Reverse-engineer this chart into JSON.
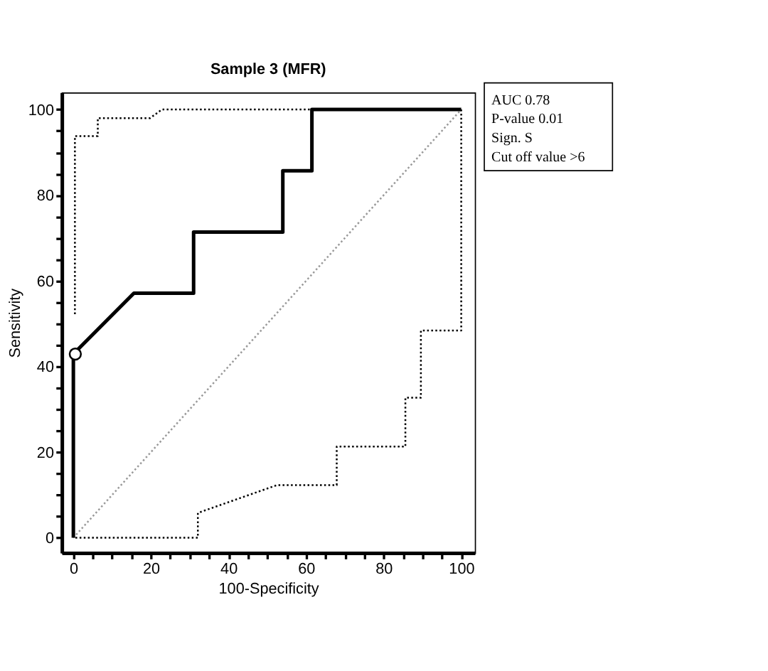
{
  "chart_data": {
    "type": "line",
    "title": "Sample 3 (MFR)",
    "xlabel": "100-Specificity",
    "ylabel": "Sensitivity",
    "xlim": [
      -3,
      103.5
    ],
    "ylim": [
      -3.5,
      104
    ],
    "xticks": [
      0,
      {
        "value": 5,
        "label": null
      },
      {
        "value": 10,
        "label": null
      },
      {
        "value": 15,
        "label": null
      },
      20,
      {
        "value": 25,
        "label": null
      },
      {
        "value": 30,
        "label": null
      },
      {
        "value": 35,
        "label": null
      },
      40,
      {
        "value": 45,
        "label": null
      },
      {
        "value": 50,
        "label": null
      },
      {
        "value": 55,
        "label": null
      },
      60,
      {
        "value": 65,
        "label": null
      },
      {
        "value": 70,
        "label": null
      },
      {
        "value": 75,
        "label": null
      },
      80,
      {
        "value": 85,
        "label": null
      },
      {
        "value": 90,
        "label": null
      },
      {
        "value": 95,
        "label": null
      },
      100
    ],
    "yticks": [
      0,
      {
        "value": 5,
        "label": null
      },
      {
        "value": 10,
        "label": null
      },
      {
        "value": 15,
        "label": null
      },
      20,
      {
        "value": 25,
        "label": null
      },
      {
        "value": 30,
        "label": null
      },
      {
        "value": 35,
        "label": null
      },
      40,
      {
        "value": 45,
        "label": null
      },
      {
        "value": 50,
        "label": null
      },
      {
        "value": 55,
        "label": null
      },
      60,
      {
        "value": 65,
        "label": null
      },
      {
        "value": 70,
        "label": null
      },
      {
        "value": 75,
        "label": null
      },
      80,
      {
        "value": 85,
        "label": null
      },
      {
        "value": 90,
        "label": null
      },
      {
        "value": 95,
        "label": null
      },
      100
    ],
    "grid": false,
    "marker": "none",
    "series": [
      {
        "color": "#9a9a9a",
        "line_style": "dotted",
        "x": [
          0,
          100
        ],
        "values": [
          0,
          100
        ]
      },
      {
        "color": "#000000",
        "line_style": "dotted",
        "x": [
          0.4,
          0.4,
          1.5,
          6.3,
          6.3,
          19.8,
          22.8,
          100
        ],
        "values": [
          52.2,
          93.8,
          93.8,
          93.8,
          98,
          98,
          100,
          100
        ]
      },
      {
        "color": "#000000",
        "line_style": "dotted",
        "x": [
          100,
          100,
          89.6,
          89.6,
          85.6,
          85.6,
          67.9,
          67.9,
          52.5,
          32.1,
          32.1,
          0
        ],
        "values": [
          100,
          48.4,
          48.4,
          32.7,
          32.7,
          21.3,
          21.3,
          12.3,
          12.3,
          5.8,
          0,
          0
        ]
      },
      {
        "color": "#000000",
        "line_style": "solid",
        "x": [
          0,
          0,
          15.6,
          31,
          31,
          54,
          54,
          61.5,
          61.5,
          100
        ],
        "values": [
          0,
          42.9,
          57.1,
          57.1,
          71.4,
          71.4,
          85.7,
          85.7,
          100,
          100
        ]
      },
      {
        "type": "scatter",
        "color": "#000000",
        "marker": "circle",
        "x": [
          0.5
        ],
        "values": [
          42.9
        ]
      }
    ],
    "annotations": [
      "AUC 0.78",
      "P-value 0.01",
      "Sign. S",
      "Cut off value  >6"
    ]
  }
}
